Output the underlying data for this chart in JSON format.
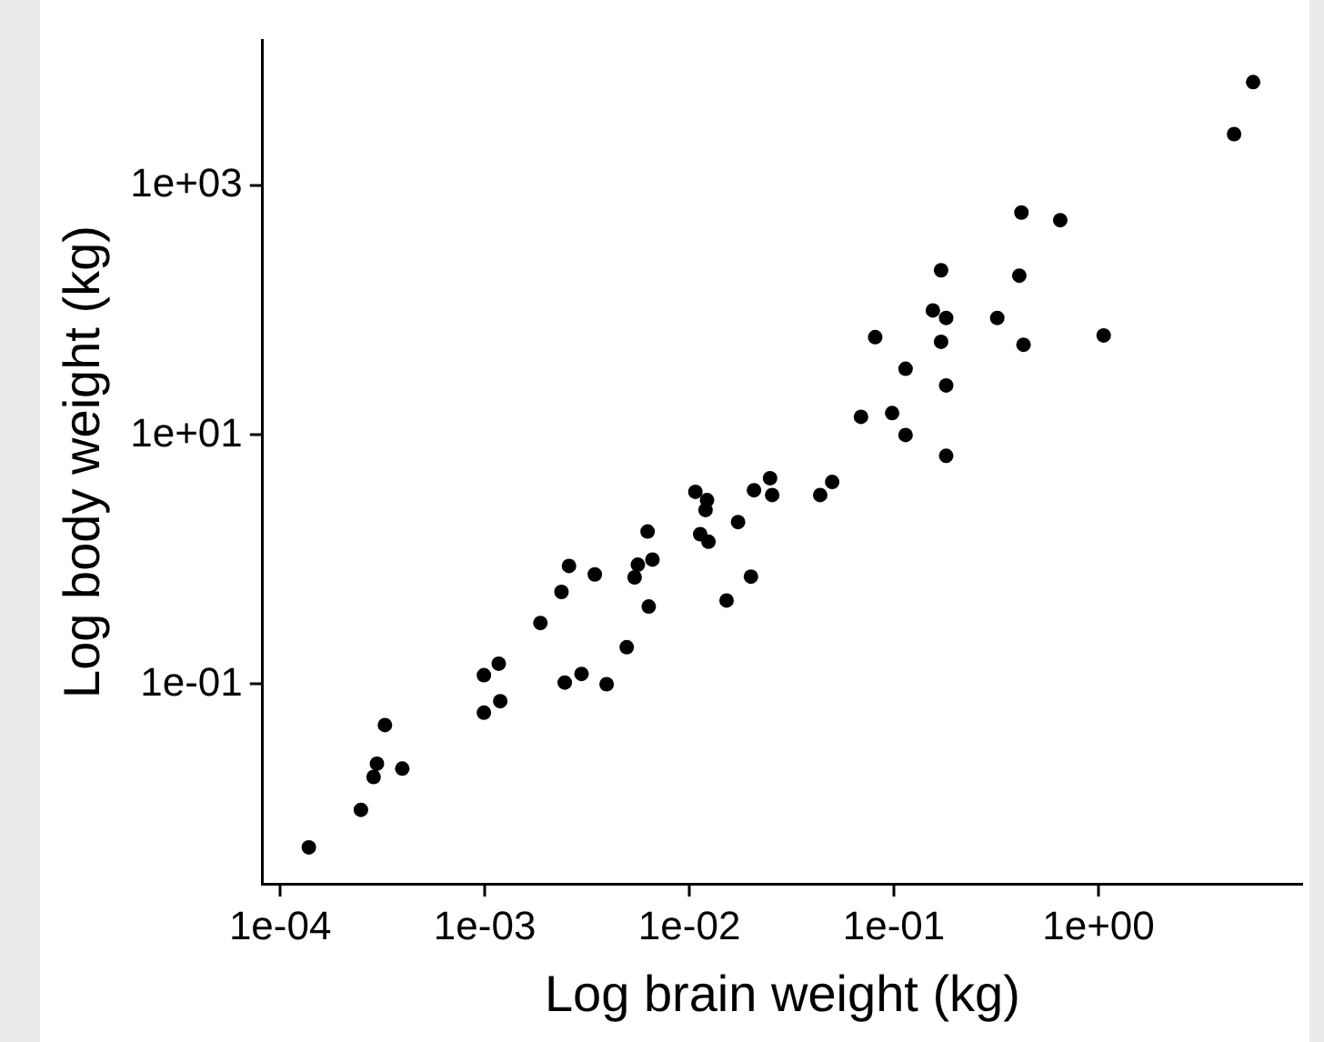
{
  "chart_data": {
    "type": "scatter",
    "xlabel": "Log brain weight (kg)",
    "ylabel": "Log body weight (kg)",
    "log": "xy",
    "grid": false,
    "legend": false,
    "marker": "circle",
    "xlim": [
      8.2e-05,
      9.9
    ],
    "ylim": [
      0.0025,
      14800
    ],
    "xticks": [
      {
        "value": 0.0001,
        "label": "1e-04"
      },
      {
        "value": 0.001,
        "label": "1e-03"
      },
      {
        "value": 0.01,
        "label": "1e-02"
      },
      {
        "value": 0.1,
        "label": "1e-01"
      },
      {
        "value": 1,
        "label": "1e+00"
      }
    ],
    "yticks": [
      {
        "value": 0.1,
        "label": "1e-01"
      },
      {
        "value": 10,
        "label": "1e+01"
      },
      {
        "value": 1000,
        "label": "1e+03"
      }
    ],
    "series": [
      {
        "color": "#000000",
        "x": [
          5.7,
          4.6,
          0.42,
          0.65,
          0.17,
          0.41,
          0.155,
          0.18,
          0.32,
          0.081,
          1.06,
          0.17,
          0.43,
          0.114,
          0.18,
          0.069,
          0.098,
          0.114,
          0.18,
          0.000138,
          0.000248,
          0.000286,
          0.000297,
          0.000395,
          0.000325,
          0.00099,
          0.00119,
          0.00099,
          0.00117,
          0.00246,
          0.00297,
          0.00394,
          0.00187,
          0.00237,
          0.00258,
          0.00345,
          0.00494,
          0.00633,
          0.0054,
          0.0056,
          0.0066,
          0.00625,
          0.0107,
          0.0122,
          0.012,
          0.0113,
          0.0124,
          0.0173,
          0.0152,
          0.02,
          0.0207,
          0.0248,
          0.0254,
          0.0436,
          0.0499
        ],
        "values": [
          6800,
          2600,
          610,
          530,
          210,
          190,
          100,
          87,
          87,
          61,
          63,
          56,
          53,
          34,
          25,
          14,
          15,
          10,
          6.8,
          0.0049,
          0.0098,
          0.018,
          0.023,
          0.021,
          0.047,
          0.059,
          0.073,
          0.118,
          0.146,
          0.103,
          0.121,
          0.1,
          0.31,
          0.55,
          0.89,
          0.76,
          0.198,
          0.42,
          0.72,
          0.91,
          1.0,
          1.68,
          3.5,
          3.0,
          2.5,
          1.6,
          1.39,
          2.0,
          0.47,
          0.73,
          3.6,
          4.5,
          3.3,
          3.3,
          4.2
        ]
      }
    ]
  }
}
